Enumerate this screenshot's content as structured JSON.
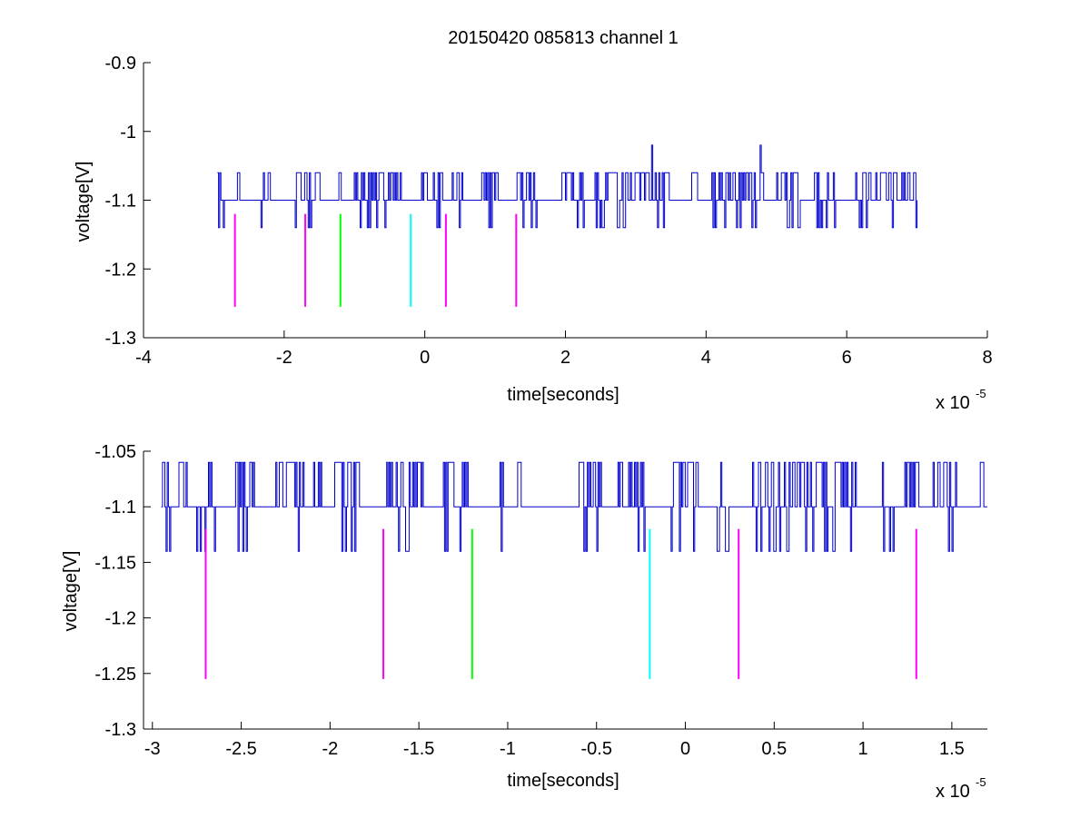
{
  "figure": {
    "background": "#ffffff"
  },
  "chart_data": [
    {
      "type": "line",
      "title": "20150420 085813 channel 1",
      "xlabel": "time[seconds]",
      "ylabel": "voltage[V]",
      "x_exponent_label": "x 10",
      "x_exponent": "-5",
      "xlim": [
        -4e-05,
        8e-05
      ],
      "ylim": [
        -1.3,
        -0.9
      ],
      "xticks": [
        -4e-05,
        -2e-05,
        0,
        2e-05,
        4e-05,
        6e-05,
        8e-05
      ],
      "xtick_labels": [
        "-4",
        "-2",
        "0",
        "2",
        "4",
        "6",
        "8"
      ],
      "yticks": [
        -1.3,
        -1.2,
        -1.1,
        -1.0,
        -0.9
      ],
      "ytick_labels": [
        "-1.3",
        "-1.2",
        "-1.1",
        "-1",
        "-0.9"
      ],
      "grid": false,
      "signal": {
        "color": "#0000cc",
        "x_start": -2.95e-05,
        "x_end": 7e-05,
        "levels": [
          -1.06,
          -1.1,
          -1.14
        ],
        "spikes": [
          {
            "x": 3.22e-05,
            "y": -1.02
          },
          {
            "x": 4.77e-05,
            "y": -1.02
          }
        ]
      },
      "markers": [
        {
          "x": -2.7e-05,
          "y_top": -1.12,
          "y_bottom": -1.255,
          "color": "#ff00ff"
        },
        {
          "x": -1.7e-05,
          "y_top": -1.12,
          "y_bottom": -1.255,
          "color": "#ff00ff"
        },
        {
          "x": -1.2e-05,
          "y_top": -1.12,
          "y_bottom": -1.255,
          "color": "#00ff00"
        },
        {
          "x": -2e-06,
          "y_top": -1.12,
          "y_bottom": -1.255,
          "color": "#00ffff"
        },
        {
          "x": 3e-06,
          "y_top": -1.12,
          "y_bottom": -1.255,
          "color": "#ff00ff"
        },
        {
          "x": 1.3e-05,
          "y_top": -1.12,
          "y_bottom": -1.255,
          "color": "#ff00ff"
        }
      ]
    },
    {
      "type": "line",
      "title": "",
      "xlabel": "time[seconds]",
      "ylabel": "voltage[V]",
      "x_exponent_label": "x 10",
      "x_exponent": "-5",
      "xlim": [
        -3.05e-05,
        1.7e-05
      ],
      "ylim": [
        -1.3,
        -1.05
      ],
      "xticks": [
        -3e-05,
        -2.5e-05,
        -2e-05,
        -1.5e-05,
        -1e-05,
        -5e-06,
        0,
        5e-06,
        1e-05,
        1.5e-05
      ],
      "xtick_labels": [
        "-3",
        "-2.5",
        "-2",
        "-1.5",
        "-1",
        "-0.5",
        "0",
        "0.5",
        "1",
        "1.5"
      ],
      "yticks": [
        -1.3,
        -1.25,
        -1.2,
        -1.15,
        -1.1,
        -1.05
      ],
      "ytick_labels": [
        "-1.3",
        "-1.25",
        "-1.2",
        "-1.15",
        "-1.1",
        "-1.05"
      ],
      "grid": false,
      "signal": {
        "color": "#0000cc",
        "x_start": -2.95e-05,
        "x_end": 1.7e-05,
        "levels": [
          -1.06,
          -1.1,
          -1.14
        ],
        "spikes": []
      },
      "markers": [
        {
          "x": -2.7e-05,
          "y_top": -1.12,
          "y_bottom": -1.255,
          "color": "#ff00ff"
        },
        {
          "x": -1.7e-05,
          "y_top": -1.12,
          "y_bottom": -1.255,
          "color": "#ff00ff"
        },
        {
          "x": -1.2e-05,
          "y_top": -1.12,
          "y_bottom": -1.255,
          "color": "#00ff00"
        },
        {
          "x": -2e-06,
          "y_top": -1.12,
          "y_bottom": -1.255,
          "color": "#00ffff"
        },
        {
          "x": 3e-06,
          "y_top": -1.12,
          "y_bottom": -1.255,
          "color": "#ff00ff"
        },
        {
          "x": 1.3e-05,
          "y_top": -1.12,
          "y_bottom": -1.255,
          "color": "#ff00ff"
        }
      ]
    }
  ]
}
